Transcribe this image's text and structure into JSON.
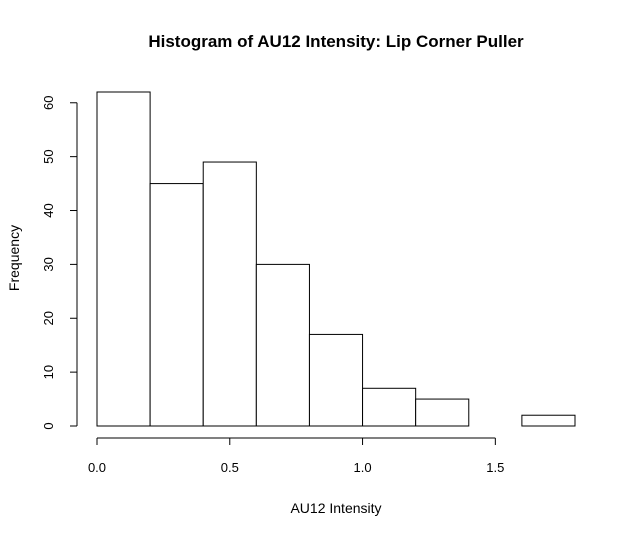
{
  "chart_data": {
    "type": "histogram",
    "title": "Histogram of AU12 Intensity: Lip Corner Puller",
    "xlabel": "AU12 Intensity",
    "ylabel": "Frequency",
    "bin_edges": [
      0.0,
      0.2,
      0.4,
      0.6,
      0.8,
      1.0,
      1.2,
      1.4,
      1.6,
      1.8
    ],
    "values": [
      62,
      45,
      49,
      30,
      17,
      7,
      5,
      0,
      2
    ],
    "xlim": [
      0.0,
      1.8
    ],
    "ylim": [
      0,
      62
    ],
    "x_ticks": [
      0.0,
      0.5,
      1.0,
      1.5
    ],
    "x_tick_labels": [
      "0.0",
      "0.5",
      "1.0",
      "1.5"
    ],
    "y_ticks": [
      0,
      10,
      20,
      30,
      40,
      50,
      60
    ],
    "y_tick_labels": [
      "0",
      "10",
      "20",
      "30",
      "40",
      "50",
      "60"
    ],
    "bar_fill": "#ffffff",
    "bar_stroke": "#000000",
    "grid": false,
    "legend": "none"
  }
}
